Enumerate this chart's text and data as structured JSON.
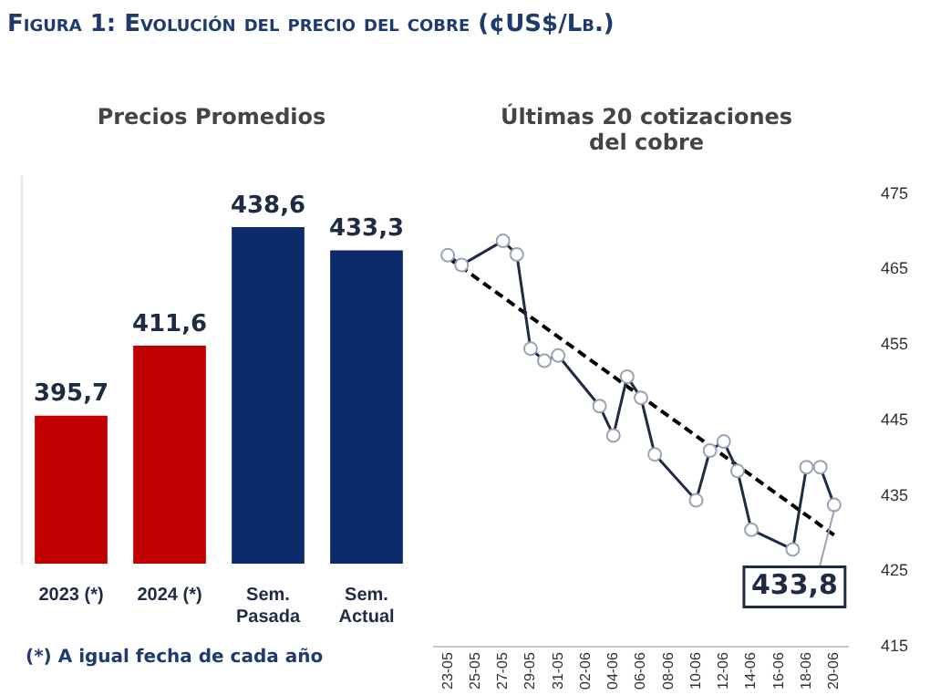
{
  "chart_data": [
    {
      "type": "bar",
      "title": "Figura 1: Evolución del precio del cobre (¢US$/Lb.)",
      "subtitle": "Precios Promedios",
      "categories": [
        "2023 (*)",
        "2024 (*)",
        "Sem. Pasada",
        "Sem. Actual"
      ],
      "values": [
        395.7,
        411.6,
        438.6,
        433.3
      ],
      "value_labels": [
        "395,7",
        "411,6",
        "438,6",
        "433,3"
      ],
      "colors": [
        "#c00000",
        "#c00000",
        "#0d2a6b",
        "#0d2a6b"
      ],
      "ylim": [
        362,
        450
      ],
      "tick_labels": "x",
      "grid": false,
      "legend": false,
      "annotations": [
        "(*) A igual fecha de cada año"
      ]
    },
    {
      "type": "line",
      "title": "Últimas 20 cotizaciones del cobre",
      "xlim": [
        "--05-22",
        "--06-21"
      ],
      "xticks": [
        {
          "value": "--05-23",
          "label": "23-05"
        },
        {
          "value": "--05-25",
          "label": "25-05"
        },
        {
          "value": "--05-27",
          "label": "27-05"
        },
        {
          "value": "--05-29",
          "label": "29-05"
        },
        {
          "value": "--05-31",
          "label": "31-05"
        },
        {
          "value": "--06-02",
          "label": "02-06"
        },
        {
          "value": "--06-04",
          "label": "04-06"
        },
        {
          "value": "--06-06",
          "label": "06-06"
        },
        {
          "value": "--06-08",
          "label": "08-06"
        },
        {
          "value": "--06-10",
          "label": "10-06"
        },
        {
          "value": "--06-12",
          "label": "12-06"
        },
        {
          "value": "--06-14",
          "label": "14-06"
        },
        {
          "value": "--06-16",
          "label": "16-06"
        },
        {
          "value": "--06-18",
          "label": "18-06"
        },
        {
          "value": "--06-20",
          "label": "20-06"
        }
      ],
      "ylim": [
        415,
        475
      ],
      "yticks": [
        415,
        425,
        435,
        445,
        455,
        465,
        475
      ],
      "grid": false,
      "legend": false,
      "series": [
        {
          "color": "#1f2a44",
          "marker": "circle",
          "line_style": "solid",
          "x": [
            "--05-23",
            "--05-24",
            "--05-27",
            "--05-28",
            "--05-29",
            "--05-30",
            "--05-31",
            "--06-03",
            "--06-04",
            "--06-05",
            "--06-06",
            "--06-07",
            "--06-10",
            "--06-11",
            "--06-12",
            "--06-13",
            "--06-14",
            "--06-17",
            "--06-18",
            "--06-19",
            "--06-20"
          ],
          "values": [
            466.9,
            465.6,
            468.8,
            467,
            454.5,
            452.9,
            453.6,
            446.9,
            443,
            450.8,
            448,
            440.5,
            434.4,
            441,
            442.2,
            438.3,
            430.5,
            427.9,
            438.8,
            438.8,
            433.8
          ]
        },
        {
          "type": "line",
          "color": "#000000",
          "marker": "none",
          "line_style": "dashed",
          "x": [
            "--05-23",
            "--06-20"
          ],
          "values": [
            466.6,
            429.8
          ]
        }
      ],
      "annotations": [
        {
          "text": "433,8",
          "x": "--06-20",
          "y": 433.8
        }
      ]
    }
  ]
}
